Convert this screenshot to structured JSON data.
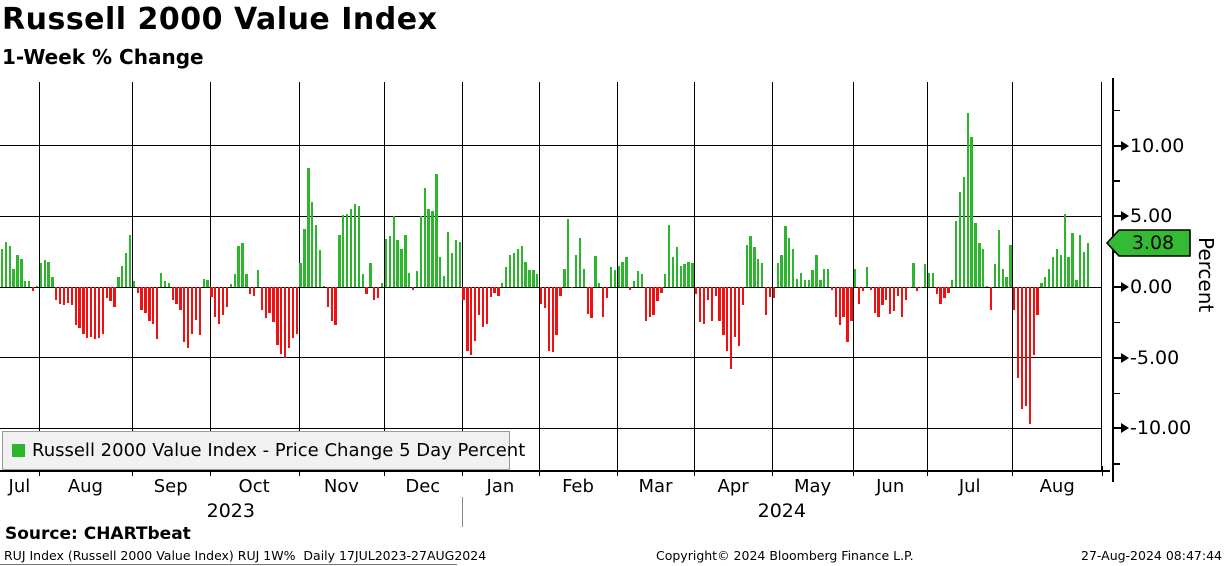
{
  "chart_data": {
    "type": "bar",
    "title": "Russell 2000 Value Index",
    "subtitle": "1-Week % Change",
    "ylabel": "Percent",
    "yticks": [
      10,
      5,
      0,
      -5,
      -10
    ],
    "yticks_minor": [
      12.5,
      7.5,
      2.5,
      -2.5,
      -7.5,
      -12.5
    ],
    "ylim": [
      -12.9,
      14.6
    ],
    "grid": "on",
    "last_value": 3.08,
    "last_value_label": "3.08",
    "colors": {
      "positive": "#2eb52e",
      "negative": "#ee1111",
      "tag": "#33bb33"
    },
    "legend": [
      "Russell 2000 Value Index - Price Change 5 Day Percent"
    ],
    "years": [
      {
        "label": "2023",
        "months": [
          {
            "label": "Jul",
            "values": [
              2.7,
              3.2,
              2.9,
              1.3,
              2.3,
              2.0,
              0.4,
              0.4,
              -0.3,
              0.1
            ]
          },
          {
            "label": "Aug",
            "values": [
              1.7,
              1.9,
              1.8,
              0.7,
              -0.9,
              -1.2,
              -1.3,
              -1.1,
              -1.3,
              -2.7,
              -2.9,
              -3.3,
              -3.6,
              -3.5,
              -3.7,
              -3.6,
              -3.3,
              -0.8,
              -1.0,
              -1.4,
              0.7,
              1.5,
              2.4,
              3.7
            ]
          },
          {
            "label": "Sep",
            "values": [
              0.4,
              -0.4,
              -1.6,
              -1.8,
              -2.4,
              -2.6,
              -3.7,
              1.0,
              0.4,
              0.3,
              -0.9,
              -1.2,
              -1.6,
              -3.9,
              -4.3,
              -3.3,
              -2.3,
              -3.4,
              0.6,
              0.5
            ]
          },
          {
            "label": "Oct",
            "values": [
              -0.7,
              -2.1,
              -2.6,
              -2.0,
              -1.4,
              0.2,
              0.9,
              2.9,
              3.1,
              0.9,
              -0.5,
              -0.6,
              1.2,
              -1.6,
              -2.2,
              -1.8,
              -2.5,
              -4.1,
              -4.7,
              -5.0,
              -4.3,
              -3.6,
              -3.3
            ]
          },
          {
            "label": "Nov",
            "values": [
              1.7,
              4.1,
              8.4,
              6.0,
              4.4,
              2.6,
              0.1,
              -1.4,
              -2.4,
              -2.7,
              3.7,
              5.1,
              5.2,
              5.5,
              5.9,
              5.7,
              0.9,
              -0.5,
              1.7,
              -0.9,
              -0.8,
              0.3
            ]
          },
          {
            "label": "Dec",
            "values": [
              3.4,
              3.6,
              5.0,
              3.3,
              2.7,
              3.7,
              1.0,
              -0.2,
              1.1,
              5.0,
              7.0,
              5.5,
              5.4,
              8.0,
              2.1,
              0.8,
              3.9,
              2.4,
              3.3,
              3.2
            ]
          }
        ]
      },
      {
        "label": "2024",
        "months": [
          {
            "label": "Jan",
            "values": [
              -0.9,
              -4.5,
              -4.8,
              -3.8,
              -2.0,
              -2.8,
              -2.6,
              -0.7,
              -0.4,
              -0.6,
              0.3,
              1.4,
              2.3,
              2.4,
              2.7,
              2.9,
              1.8,
              1.2,
              1.2,
              0.9
            ]
          },
          {
            "label": "Feb",
            "values": [
              -1.2,
              -1.5,
              -4.5,
              -4.6,
              -3.4,
              -0.6,
              1.3,
              4.8,
              -0.1,
              2.3,
              3.5,
              1.3,
              -1.9,
              -2.2,
              2.2,
              0.3,
              -2.1,
              -0.8,
              1.4,
              1.2
            ]
          },
          {
            "label": "Mar",
            "values": [
              1.5,
              1.8,
              2.1,
              -0.2,
              0.4,
              1.1,
              0.9,
              -2.4,
              -2.1,
              -2.0,
              -1.0,
              -0.4,
              0.9,
              4.4,
              2.1,
              2.8,
              1.5,
              1.6,
              1.8,
              1.7
            ]
          },
          {
            "label": "Apr",
            "values": [
              -0.5,
              -2.5,
              -2.6,
              -0.9,
              -2.4,
              -0.6,
              -2.4,
              -3.4,
              -4.5,
              -5.8,
              -3.5,
              -4.2,
              -1.3,
              3.0,
              3.6,
              2.8,
              2.0,
              1.7,
              -2.0,
              -0.7
            ]
          },
          {
            "label": "May",
            "values": [
              -0.8,
              1.7,
              2.3,
              4.3,
              3.5,
              2.7,
              0.6,
              1.0,
              0.5,
              0.5,
              1.2,
              2.3,
              0.5,
              1.3,
              1.3,
              -0.2,
              -2.1,
              -2.7,
              -2.1,
              -3.9,
              -2.4
            ]
          },
          {
            "label": "Jun",
            "values": [
              1.3,
              -1.2,
              -0.3,
              1.4,
              -0.2,
              -1.8,
              -2.1,
              -1.3,
              -0.9,
              -1.9,
              -1.7,
              -0.6,
              -2.1,
              -0.9,
              -0.1,
              1.7,
              -0.3,
              -0.1,
              1.6
            ]
          },
          {
            "label": "Jul",
            "values": [
              1.0,
              1.0,
              -0.5,
              -1.2,
              -0.8,
              -0.4,
              0.5,
              4.7,
              6.7,
              7.8,
              12.3,
              10.6,
              4.5,
              3.1,
              2.7,
              0.1,
              -1.6,
              1.6,
              4.0,
              1.3,
              0.7,
              3.0
            ]
          },
          {
            "label": "Aug",
            "values": [
              -1.6,
              -6.4,
              -8.6,
              -8.4,
              -9.7,
              -4.8,
              -2.0,
              0.3,
              0.7,
              1.3,
              2.1,
              2.7,
              2.3,
              5.2,
              2.1,
              3.8,
              0.5,
              3.7,
              2.5,
              3.08
            ]
          }
        ]
      }
    ]
  },
  "footer": {
    "source": "Source: CHARTbeat",
    "info_left": "RUJ Index (Russell 2000 Value Index) RUJ 1W%  Daily 17JUL2023-27AUG2024",
    "info_center": "Copyright© 2024 Bloomberg Finance L.P.",
    "info_right": "27-Aug-2024 08:47:44"
  }
}
